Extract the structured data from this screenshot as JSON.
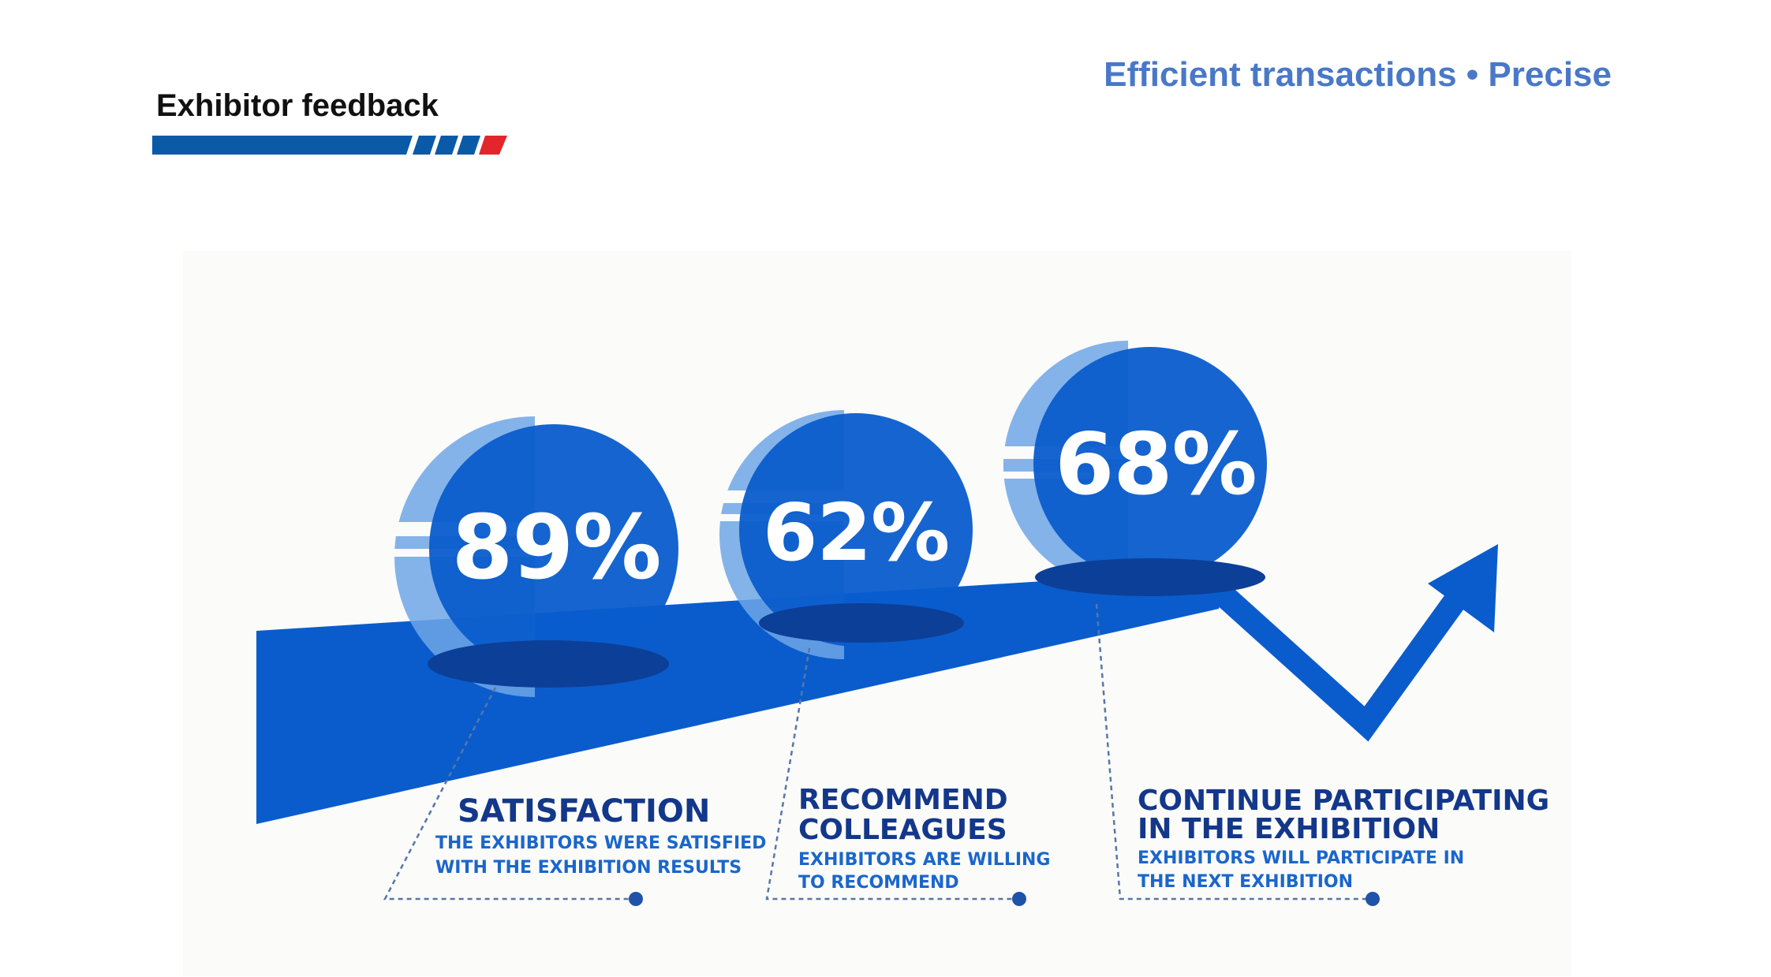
{
  "header": {
    "title": "Exhibitor feedback",
    "tagline": "Efficient transactions • Precise"
  },
  "colors": {
    "primary_blue": "#0a5ccc",
    "light_blue": "#6fa6e6",
    "dark_shadow": "#0c3f98",
    "navy_text": "#13378a",
    "accent_red": "#e3262b",
    "tagline_blue": "#4a78c8"
  },
  "stats": [
    {
      "value": "89%",
      "title": "SATISFACTION",
      "description": "THE EXHIBITORS WERE SATISFIED\nWITH THE EXHIBITION RESULTS"
    },
    {
      "value": "62%",
      "title": "RECOMMEND\nCOLLEAGUES",
      "description": "EXHIBITORS ARE WILLING\nTO RECOMMEND"
    },
    {
      "value": "68%",
      "title": "CONTINUE PARTICIPATING\nIN THE EXHIBITION",
      "description": "EXHIBITORS WILL PARTICIPATE IN\nTHE NEXT EXHIBITION"
    }
  ]
}
